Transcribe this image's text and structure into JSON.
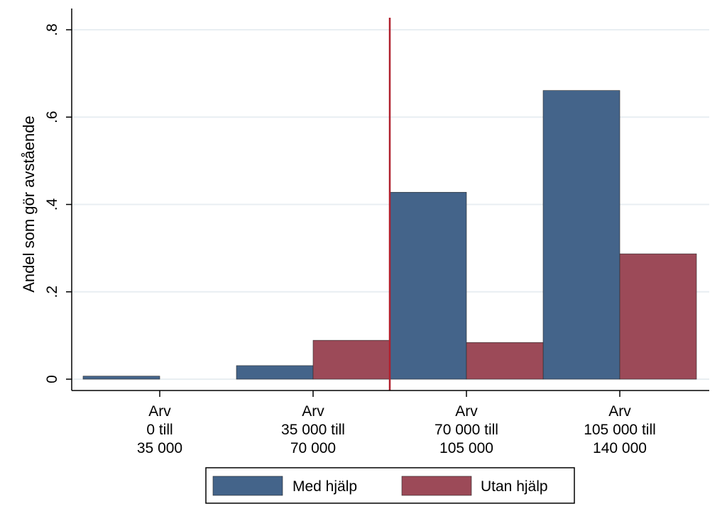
{
  "chart_data": {
    "type": "bar",
    "categories": [
      [
        "Arv",
        "0 till",
        "35 000"
      ],
      [
        "Arv",
        "35 000 till",
        "70 000"
      ],
      [
        "Arv",
        "70 000 till",
        "105 000"
      ],
      [
        "Arv",
        "105 000 till",
        "140 000"
      ]
    ],
    "series": [
      {
        "name": "Med hjälp",
        "color": "#44648a",
        "values": [
          0.007,
          0.031,
          0.428,
          0.661
        ]
      },
      {
        "name": "Utan hjälp",
        "color": "#9c4a58",
        "values": [
          0.0,
          0.089,
          0.084,
          0.287
        ]
      }
    ],
    "ylabel": "Andel som gör avstående",
    "xlabel": "",
    "title": "",
    "ylim": [
      0,
      0.8
    ],
    "yticks": [
      0,
      0.2,
      0.4,
      0.6,
      0.8
    ],
    "ytick_labels": [
      "0",
      ".2",
      ".4",
      ".6",
      ".8"
    ],
    "grid": true,
    "reference_line": {
      "position": "between-categories-2-and-3",
      "color": "#b0202e"
    },
    "legend": {
      "placement": "bottom-center"
    }
  }
}
